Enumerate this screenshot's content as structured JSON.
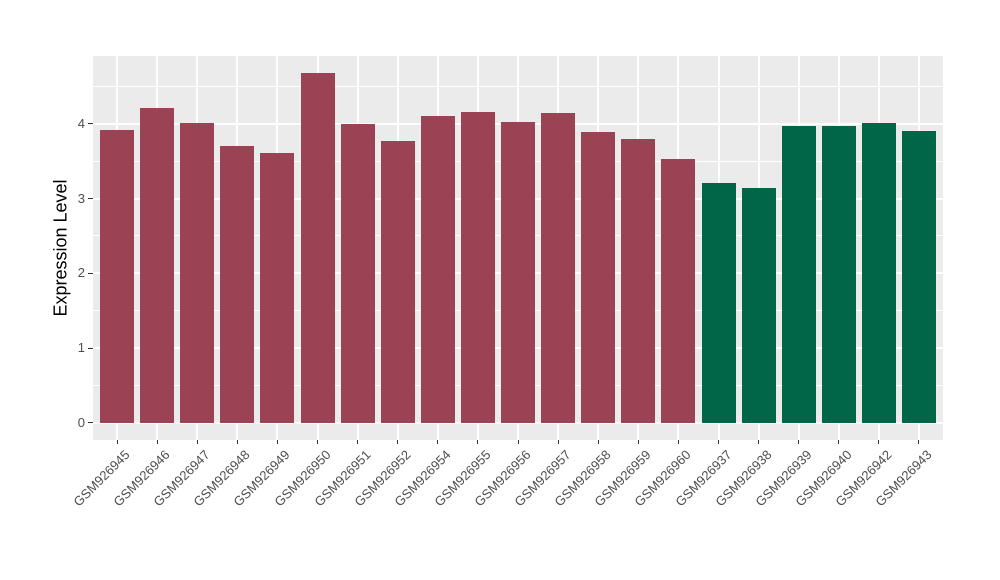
{
  "chart_data": {
    "type": "bar",
    "title": "",
    "xlabel": "",
    "ylabel": "Expression Level",
    "categories": [
      "GSM926945",
      "GSM926946",
      "GSM926947",
      "GSM926948",
      "GSM926949",
      "GSM926950",
      "GSM926951",
      "GSM926952",
      "GSM926954",
      "GSM926955",
      "GSM926956",
      "GSM926957",
      "GSM926958",
      "GSM926959",
      "GSM926960",
      "GSM926937",
      "GSM926938",
      "GSM926939",
      "GSM926940",
      "GSM926942",
      "GSM926943"
    ],
    "values": [
      3.92,
      4.21,
      4.01,
      3.71,
      3.61,
      4.68,
      4.0,
      3.77,
      4.11,
      4.16,
      4.03,
      4.15,
      3.89,
      3.8,
      3.53,
      3.21,
      3.14,
      3.97,
      3.97,
      4.01,
      3.9
    ],
    "bar_group": [
      "group1",
      "group1",
      "group1",
      "group1",
      "group1",
      "group1",
      "group1",
      "group1",
      "group1",
      "group1",
      "group1",
      "group1",
      "group1",
      "group1",
      "group1",
      "group2",
      "group2",
      "group2",
      "group2",
      "group2",
      "group2"
    ],
    "group_colors": {
      "group1": "#9B4354",
      "group2": "#006647"
    },
    "ytick_labels": [
      "0",
      "1",
      "2",
      "3",
      "4"
    ],
    "ytick_values": [
      0,
      1,
      2,
      3,
      4
    ],
    "minor_ytick_values": [
      0.5,
      1.5,
      2.5,
      3.5,
      4.5
    ],
    "ylim": [
      -0.23,
      4.91
    ],
    "grid": "major-and-minor-horizontal-plus-category-vertical",
    "legend": "none",
    "panel_background": "#EBEBEB",
    "grid_color": "#FFFFFF",
    "axis_text_color": "#4D4D4D",
    "axis_title_color": "#000000",
    "tick_mark_color": "#333333"
  }
}
